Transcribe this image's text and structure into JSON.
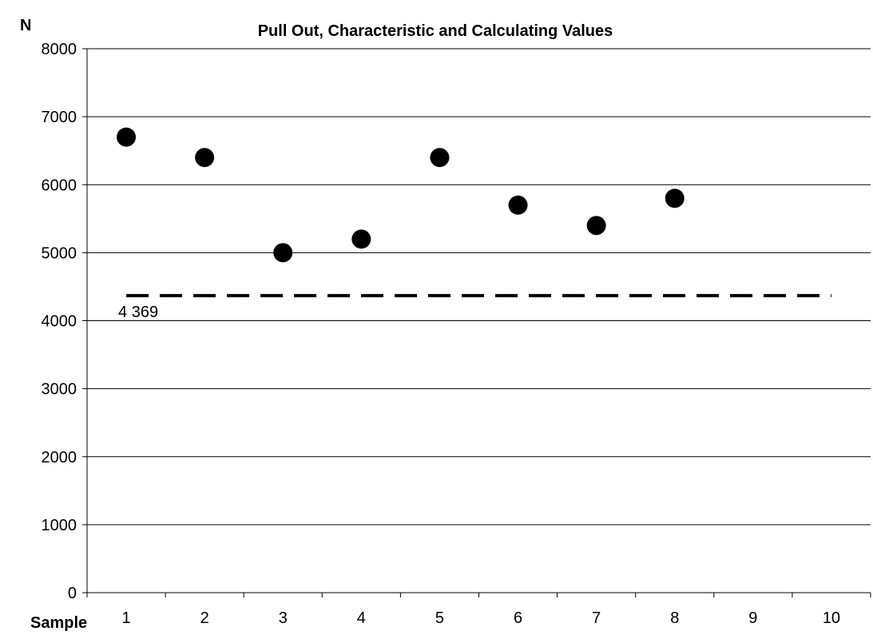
{
  "chart_data": {
    "type": "scatter",
    "title": "Pull Out, Characteristic and Calculating Values",
    "ylabel": "N",
    "xlabel": "Sample",
    "ylim": [
      0,
      8000
    ],
    "yticks": [
      0,
      1000,
      2000,
      3000,
      4000,
      5000,
      6000,
      7000,
      8000
    ],
    "ytick_labels": [
      "0",
      "1000",
      "2000",
      "3000",
      "4000",
      "5000",
      "6000",
      "7000",
      "8000"
    ],
    "categories": [
      "1",
      "2",
      "3",
      "4",
      "5",
      "6",
      "7",
      "8",
      "9",
      "10"
    ],
    "grid": "horizontal",
    "legend": "none",
    "series": [
      {
        "x": [
          1,
          2,
          3,
          4,
          5,
          6,
          7,
          8
        ],
        "y": [
          6700,
          6400,
          5000,
          5200,
          6400,
          5700,
          5400,
          5800
        ],
        "color": "#000000",
        "marker": "circle"
      }
    ],
    "reference_lines": [
      {
        "value": 4369,
        "label": "4 369",
        "style": "dashed",
        "color": "#000000"
      }
    ]
  }
}
